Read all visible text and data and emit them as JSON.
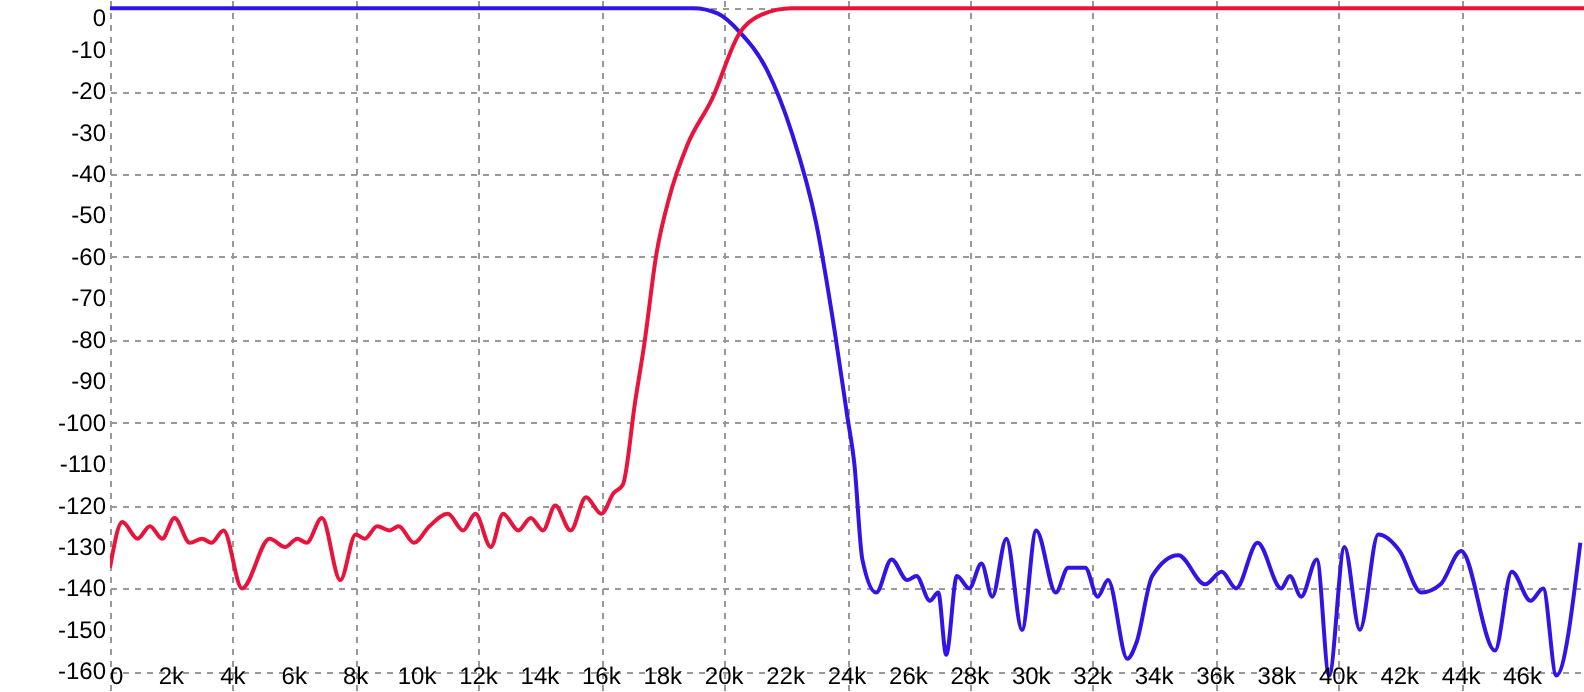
{
  "chart_data": {
    "type": "line",
    "xlim": [
      0,
      48000
    ],
    "ylim": [
      -165,
      2
    ],
    "xticks": [
      0,
      {
        "value": 2000,
        "label": "2k"
      },
      {
        "value": 4000,
        "label": "4k"
      },
      {
        "value": 6000,
        "label": "6k"
      },
      {
        "value": 8000,
        "label": "8k"
      },
      {
        "value": 10000,
        "label": "10k"
      },
      {
        "value": 12000,
        "label": "12k"
      },
      {
        "value": 14000,
        "label": "14k"
      },
      {
        "value": 16000,
        "label": "16k"
      },
      {
        "value": 18000,
        "label": "18k"
      },
      {
        "value": 20000,
        "label": "20k"
      },
      {
        "value": 22000,
        "label": "22k"
      },
      {
        "value": 24000,
        "label": "24k"
      },
      {
        "value": 26000,
        "label": "26k"
      },
      {
        "value": 28000,
        "label": "28k"
      },
      {
        "value": 30000,
        "label": "30k"
      },
      {
        "value": 32000,
        "label": "32k"
      },
      {
        "value": 34000,
        "label": "34k"
      },
      {
        "value": 36000,
        "label": "36k"
      },
      {
        "value": 38000,
        "label": "38k"
      },
      {
        "value": 40000,
        "label": "40k"
      },
      {
        "value": 42000,
        "label": "42k"
      },
      {
        "value": 44000,
        "label": "44k"
      },
      {
        "value": 46000,
        "label": "46k"
      }
    ],
    "yticks": [
      0,
      -10,
      -20,
      -30,
      -40,
      -50,
      -60,
      -70,
      -80,
      -90,
      -100,
      -110,
      -120,
      -130,
      -140,
      -150,
      -160
    ],
    "grid": true,
    "legend": false,
    "marker": "none",
    "line_style": "solid",
    "series": [
      {
        "color": "#3214e6",
        "x": [
          0,
          19000,
          19800,
          20500,
          21400,
          22200,
          23000,
          23600,
          24000,
          24240,
          24500,
          24950,
          25450,
          25960,
          26260,
          26700,
          26970,
          27230,
          27580,
          27980,
          28380,
          28730,
          29190,
          29700,
          30160,
          30800,
          31200,
          31760,
          32160,
          32500,
          33130,
          33430,
          33940,
          34790,
          35660,
          36200,
          36670,
          37370,
          38140,
          38420,
          38790,
          39300,
          39700,
          40200,
          40700,
          41300,
          42000,
          42700,
          43330,
          44000,
          45100,
          45650,
          46260,
          46670,
          47100,
          47880
        ],
        "values": [
          0,
          0,
          -1.3,
          -5.7,
          -15,
          -30,
          -52,
          -78,
          -98,
          -110,
          -133,
          -141,
          -133,
          -138,
          -137,
          -143,
          -141,
          -156,
          -137,
          -140,
          -134,
          -142,
          -128,
          -150,
          -126,
          -141,
          -135,
          -135,
          -142,
          -138,
          -157,
          -153,
          -137,
          -132,
          -139,
          -136,
          -140,
          -129,
          -140,
          -137,
          -142,
          -133,
          -161,
          -130,
          -150,
          -127,
          -131,
          -141,
          -139,
          -131,
          -155,
          -136,
          -143,
          -140,
          -161,
          -129
        ]
      },
      {
        "color": "#e8143c",
        "x": [
          0,
          400,
          900,
          1300,
          1700,
          2100,
          2600,
          3000,
          3300,
          3700,
          4300,
          5200,
          5700,
          6100,
          6400,
          6900,
          7500,
          8000,
          8300,
          8700,
          9100,
          9400,
          9900,
          10400,
          11000,
          11500,
          11900,
          12400,
          12800,
          13300,
          13700,
          14100,
          14500,
          15000,
          15500,
          16000,
          16400,
          16700,
          17100,
          17400,
          17800,
          18200,
          18800,
          19600,
          20500,
          21200,
          22200,
          48000
        ],
        "values": [
          -135,
          -124,
          -128,
          -125,
          -128,
          -123,
          -129,
          -128,
          -129,
          -126,
          -140,
          -128,
          -130,
          -128,
          -129,
          -123,
          -138,
          -127,
          -128,
          -125,
          -126,
          -125,
          -129,
          -125,
          -122,
          -126,
          -122,
          -130,
          -122,
          -126,
          -123,
          -126,
          -120,
          -126,
          -118,
          -122,
          -117,
          -115,
          -95,
          -81,
          -59,
          -46,
          -33,
          -22,
          -6,
          -1.6,
          0,
          0
        ]
      }
    ]
  }
}
